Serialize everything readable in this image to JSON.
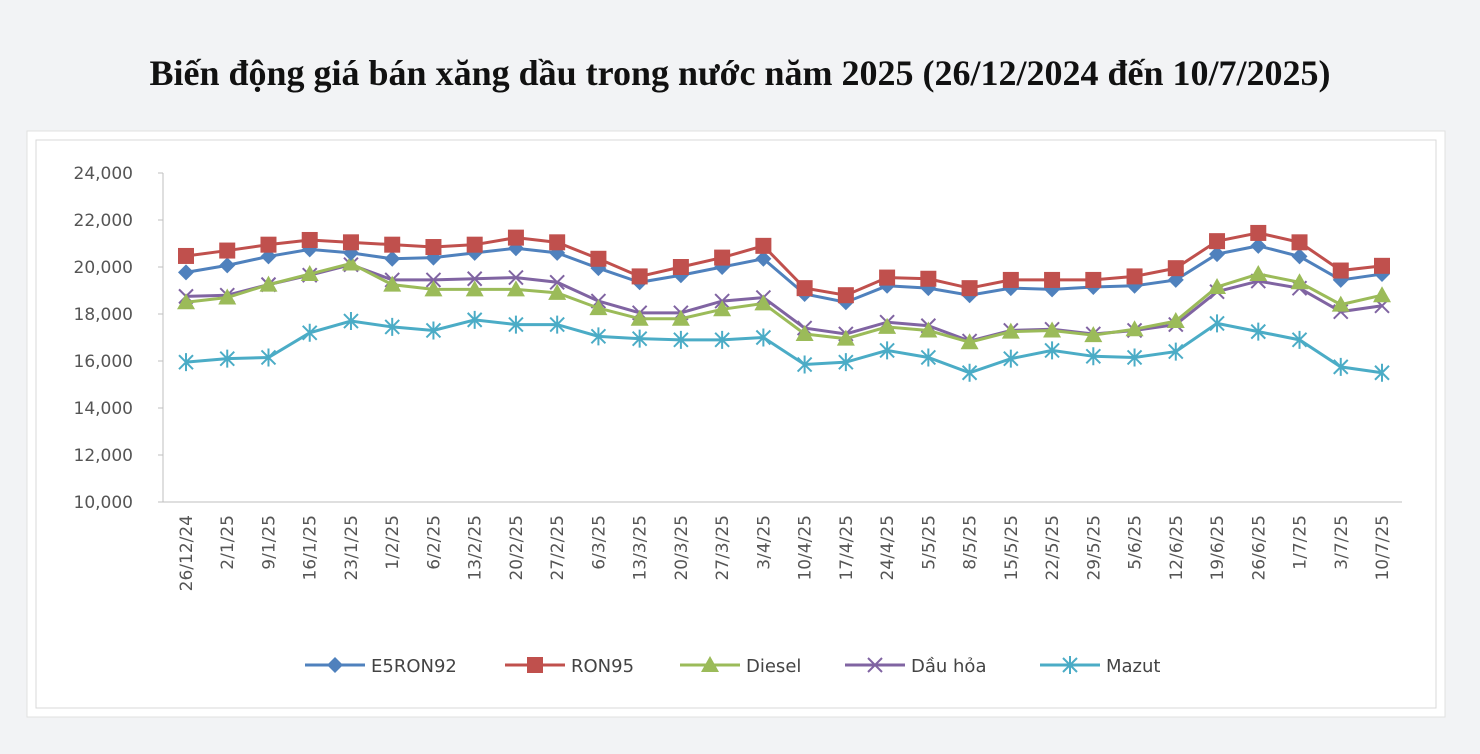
{
  "chart_data": {
    "type": "line",
    "title": "Biến động giá bán xăng dầu trong nước năm 2025 (26/12/2024 đến 10/7/2025)",
    "xlabel": "",
    "ylabel": "",
    "ylim": [
      10000,
      24000
    ],
    "yticks": [
      "10,000",
      "12,000",
      "14,000",
      "16,000",
      "18,000",
      "20,000",
      "22,000",
      "24,000"
    ],
    "grid": false,
    "legend": "bottom",
    "categories": [
      "26/12/24",
      "2/1/25",
      "9/1/25",
      "16/1/25",
      "23/1/25",
      "1/2/25",
      "6/2/25",
      "13/2/25",
      "20/2/25",
      "27/2/25",
      "6/3/25",
      "13/3/25",
      "20/3/25",
      "27/3/25",
      "3/4/25",
      "10/4/25",
      "17/4/25",
      "24/4/25",
      "5/5/25",
      "8/5/25",
      "15/5/25",
      "22/5/25",
      "29/5/25",
      "5/6/25",
      "12/6/25",
      "19/6/25",
      "26/6/25",
      "1/7/25",
      "3/7/25",
      "10/7/25"
    ],
    "series": [
      {
        "name": "E5RON92",
        "color": "#4f81bd",
        "marker": "diamond",
        "values": [
          19770,
          20070,
          20450,
          20750,
          20600,
          20350,
          20400,
          20600,
          20800,
          20600,
          19950,
          19350,
          19650,
          20000,
          20350,
          18850,
          18500,
          19200,
          19100,
          18800,
          19100,
          19050,
          19150,
          19200,
          19450,
          20550,
          20900,
          20450,
          19450,
          19700
        ]
      },
      {
        "name": "RON95",
        "color": "#c0504d",
        "marker": "square",
        "values": [
          20470,
          20700,
          20950,
          21150,
          21050,
          20950,
          20850,
          20950,
          21250,
          21050,
          20350,
          19600,
          20000,
          20400,
          20900,
          19100,
          18800,
          19550,
          19500,
          19100,
          19450,
          19450,
          19450,
          19600,
          19950,
          21100,
          21450,
          21050,
          19850,
          20050
        ]
      },
      {
        "name": "Diesel",
        "color": "#9bbb59",
        "marker": "triangle",
        "values": [
          18500,
          18700,
          19250,
          19700,
          20150,
          19250,
          19050,
          19050,
          19050,
          18900,
          18250,
          17800,
          17800,
          18200,
          18450,
          17150,
          16950,
          17450,
          17300,
          16800,
          17250,
          17300,
          17100,
          17350,
          17700,
          19150,
          19700,
          19350,
          18400,
          18800
        ]
      },
      {
        "name": "Dầu hỏa",
        "color": "#8064a2",
        "marker": "x",
        "values": [
          18750,
          18800,
          19250,
          19650,
          20100,
          19450,
          19450,
          19500,
          19550,
          19350,
          18550,
          18050,
          18050,
          18550,
          18700,
          17400,
          17150,
          17650,
          17500,
          16850,
          17300,
          17350,
          17150,
          17300,
          17550,
          18950,
          19400,
          19100,
          18100,
          18350
        ]
      },
      {
        "name": "Mazut",
        "color": "#4bacc6",
        "marker": "star",
        "values": [
          15950,
          16100,
          16150,
          17200,
          17700,
          17450,
          17300,
          17750,
          17550,
          17550,
          17050,
          16950,
          16900,
          16900,
          17000,
          15850,
          15950,
          16450,
          16150,
          15500,
          16100,
          16450,
          16200,
          16150,
          16400,
          17600,
          17250,
          16900,
          15750,
          15500
        ]
      }
    ]
  }
}
